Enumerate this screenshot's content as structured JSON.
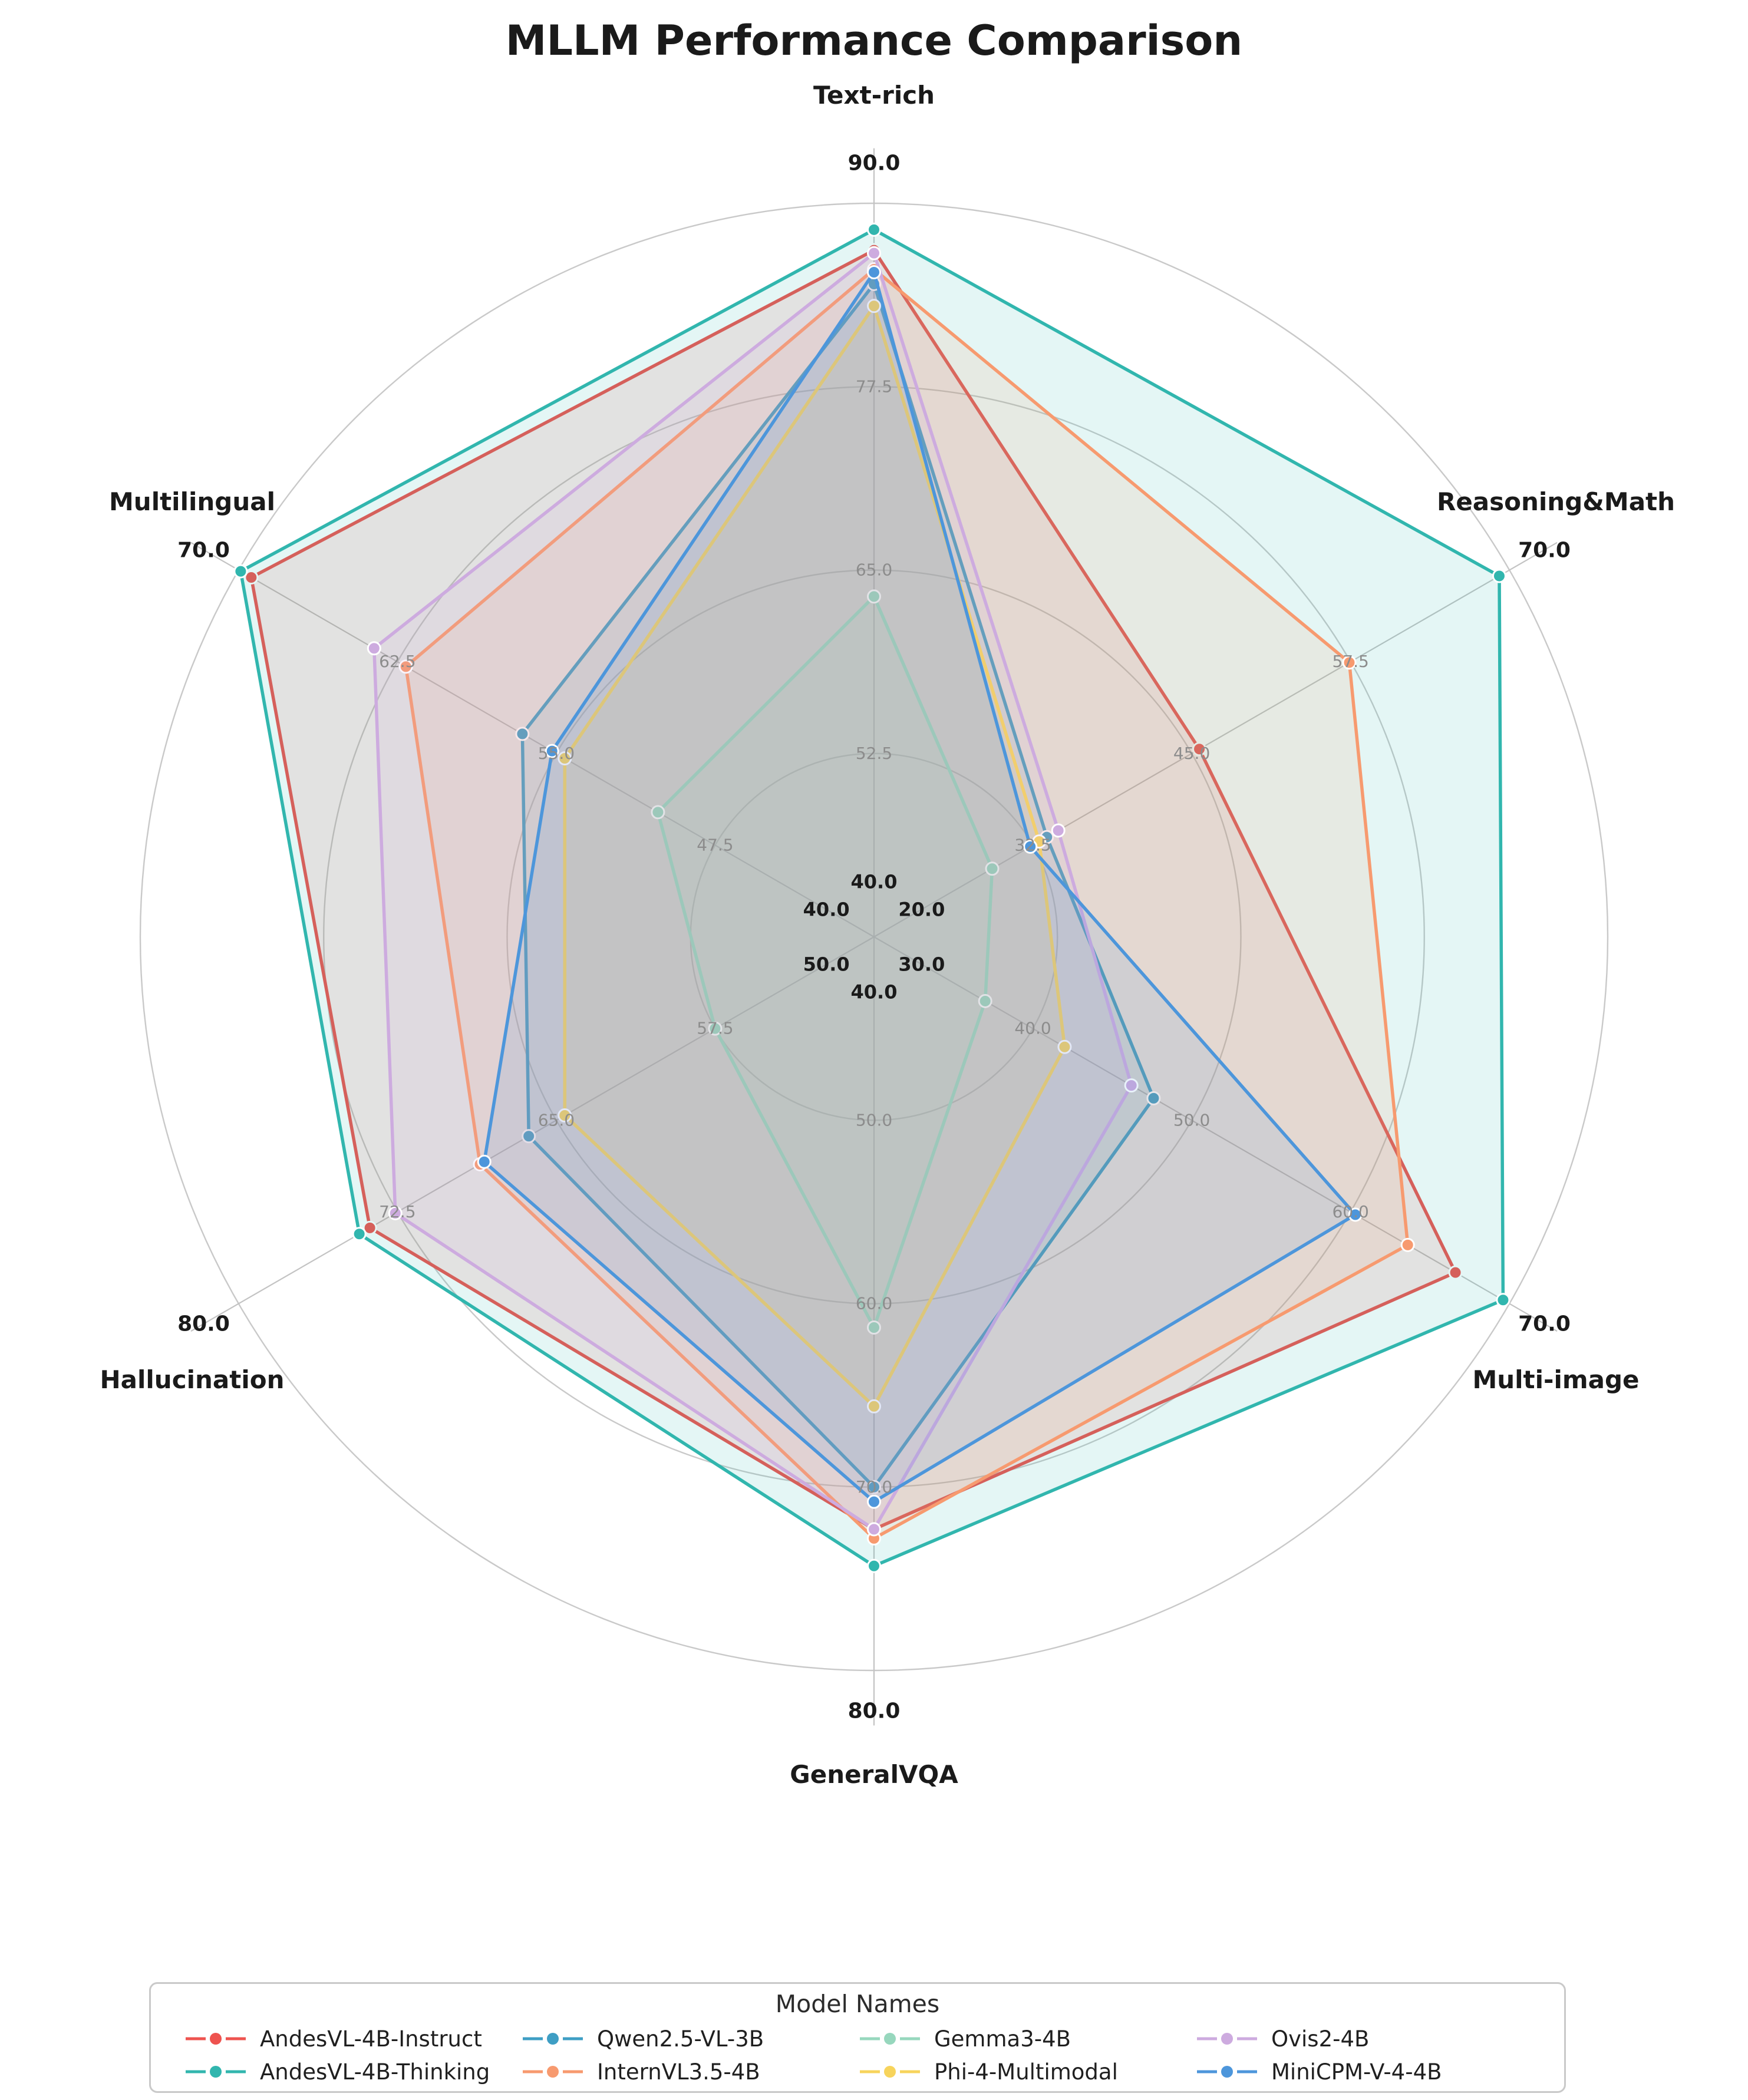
{
  "title": "MLLM Performance Comparison",
  "legend": {
    "title": "Model Names"
  },
  "chart_data": {
    "type": "radar",
    "title": "MLLM Performance Comparison",
    "grid": true,
    "legend_position": "bottom",
    "legend_title": "Model Names",
    "colors": {
      "grid": "#c9c9c9",
      "spoke": "#c3c3c3",
      "tick_text": "#8c8c8c",
      "label_text": "#1a1a1a"
    },
    "axes": [
      {
        "label": "Text-rich",
        "min": 40.0,
        "max": 90.0,
        "ticks": [
          52.5,
          65.0,
          77.5,
          90.0
        ]
      },
      {
        "label": "Reasoning&Math",
        "min": 20.0,
        "max": 70.0,
        "ticks": [
          32.5,
          45.0,
          57.5,
          70.0
        ]
      },
      {
        "label": "Multi-image",
        "min": 30.0,
        "max": 70.0,
        "ticks": [
          40.0,
          50.0,
          60.0,
          70.0
        ]
      },
      {
        "label": "GeneralVQA",
        "min": 40.0,
        "max": 80.0,
        "ticks": [
          50.0,
          60.0,
          70.0,
          80.0
        ]
      },
      {
        "label": "Hallucination",
        "min": 50.0,
        "max": 80.0,
        "ticks": [
          57.5,
          65.0,
          72.5,
          80.0
        ]
      },
      {
        "label": "Multilingual",
        "min": 40.0,
        "max": 70.0,
        "ticks": [
          47.5,
          55.0,
          62.5,
          70.0
        ]
      }
    ],
    "series": [
      {
        "name": "AndesVL-4B-Instruct",
        "color": "#EE534F",
        "values": [
          86.8,
          45.6,
          66.6,
          72.3,
          73.8,
          69.4
        ]
      },
      {
        "name": "AndesVL-4B-Thinking",
        "color": "#31B6AE",
        "values": [
          88.2,
          69.2,
          69.6,
          74.3,
          74.3,
          69.9
        ]
      },
      {
        "name": "Qwen2.5-VL-3B",
        "color": "#3E9EC4",
        "values": [
          84.5,
          33.6,
          47.6,
          70.0,
          66.3,
          56.6
        ]
      },
      {
        "name": "InternVL3.5-4B",
        "color": "#F79A6F",
        "values": [
          85.5,
          57.4,
          63.6,
          72.8,
          68.6,
          62.1
        ]
      },
      {
        "name": "Gemma3-4B",
        "color": "#97D7BD",
        "values": [
          63.2,
          29.3,
          37.0,
          61.3,
          57.5,
          50.2
        ]
      },
      {
        "name": "Phi-4-Multimodal",
        "color": "#F7D45C",
        "values": [
          83.0,
          33.0,
          42.0,
          65.6,
          64.6,
          54.6
        ]
      },
      {
        "name": "Ovis2-4B",
        "color": "#CDABDF",
        "values": [
          86.6,
          34.5,
          46.2,
          72.3,
          72.6,
          63.6
        ]
      },
      {
        "name": "MiniCPM-V-4-4B",
        "color": "#4D96DB",
        "values": [
          85.3,
          32.3,
          60.3,
          70.8,
          68.4,
          55.2
        ]
      }
    ]
  }
}
